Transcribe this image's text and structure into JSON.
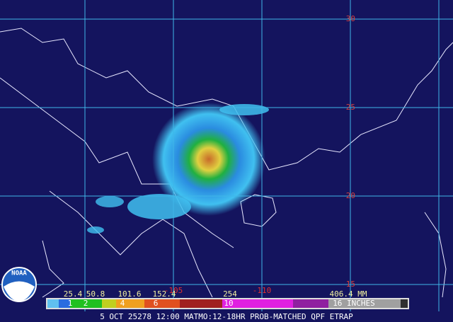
{
  "map": {
    "lat_labels": [
      "30",
      "25",
      "20",
      "15"
    ],
    "lon_labels": [
      "-105",
      "-110"
    ],
    "legend_mm_labels": [
      "25.4",
      "50.8",
      "101.6",
      "152.4",
      "254",
      "406.4 MM"
    ],
    "legend_inch_labels": [
      "1",
      "2",
      "4",
      "6",
      "10",
      "16 INCHES"
    ],
    "caption": "5 OCT 25278 12:00 MATMO:12-18HR PROB-MATCHED QPF ETRAP",
    "logo": "NOAA"
  }
}
